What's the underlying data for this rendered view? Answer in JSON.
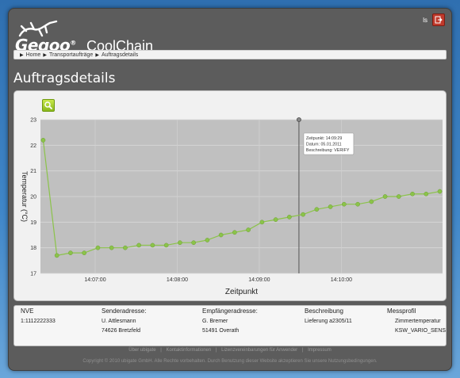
{
  "header": {
    "brand": "Geqoo",
    "product": "CoolChain",
    "user_label": "ls",
    "logout_icon": "logout-icon"
  },
  "breadcrumb": [
    {
      "label": "Home"
    },
    {
      "label": "Transportaufträge"
    },
    {
      "label": "Auftragsdetails"
    }
  ],
  "page": {
    "title": "Auftragsdetails"
  },
  "toolbar": {
    "search_icon": "search-icon",
    "accent": "#9acd32"
  },
  "chart_data": {
    "type": "line",
    "title": "",
    "xlabel": "Zeitpunkt",
    "ylabel": "Temperatur (°C)",
    "ylim": [
      17,
      23
    ],
    "yticks": [
      "17",
      "18",
      "19",
      "20",
      "21",
      "22",
      "23"
    ],
    "xticks": [
      "14:07:00",
      "14:08:00",
      "14:09:00",
      "14:10:00"
    ],
    "grid": true,
    "series_color": "#8bc34a",
    "background": "#c0c0c0",
    "x": [
      "14:06:22",
      "14:06:32",
      "14:06:42",
      "14:06:52",
      "14:07:02",
      "14:07:12",
      "14:07:22",
      "14:07:32",
      "14:07:42",
      "14:07:52",
      "14:08:02",
      "14:08:12",
      "14:08:22",
      "14:08:32",
      "14:08:42",
      "14:08:52",
      "14:09:02",
      "14:09:12",
      "14:09:22",
      "14:09:32",
      "14:09:42",
      "14:09:52",
      "14:10:02",
      "14:10:12",
      "14:10:22",
      "14:10:32",
      "14:10:42",
      "14:10:52",
      "14:11:02",
      "14:11:12"
    ],
    "values": [
      22.2,
      17.7,
      17.8,
      17.8,
      18.0,
      18.0,
      18.0,
      18.1,
      18.1,
      18.1,
      18.2,
      18.2,
      18.3,
      18.5,
      18.6,
      18.7,
      19.0,
      19.1,
      19.2,
      19.3,
      19.5,
      19.6,
      19.7,
      19.7,
      19.8,
      20.0,
      20.0,
      20.1,
      20.1,
      20.2
    ],
    "marker": {
      "x": "14:09:29",
      "lines": [
        "Zeitpunkt: 14:09:29",
        "Datum: 05.01.2011",
        "Beschreibung: VERIFY"
      ]
    }
  },
  "details": {
    "columns": [
      {
        "header": "NVE",
        "values": [
          "1:1112222333"
        ]
      },
      {
        "header": "Senderadresse:",
        "values": [
          "U. Attlesmann",
          "74626 Bretzfeld"
        ]
      },
      {
        "header": "Empfängeradresse:",
        "values": [
          "G. Bremer",
          "51491 Overath"
        ]
      },
      {
        "header": "Beschreibung",
        "values": [
          "Lieferung a2305/11"
        ]
      },
      {
        "header": "Messprofil",
        "values": [
          "Zimmertemperatur",
          "KSW_VARIO_SENS"
        ]
      }
    ]
  },
  "footer": {
    "links": [
      "Über ubigate",
      "Kontaktinformationen",
      "Lizenzvereinbarungen für Anwender",
      "Impressum"
    ],
    "copyright": "Copyright © 2010 ubigate GmbH. Alle Rechte vorbehalten. Durch Benutzung dieser Website akzeptieren Sie unsere Nutzungsbedingungen."
  }
}
